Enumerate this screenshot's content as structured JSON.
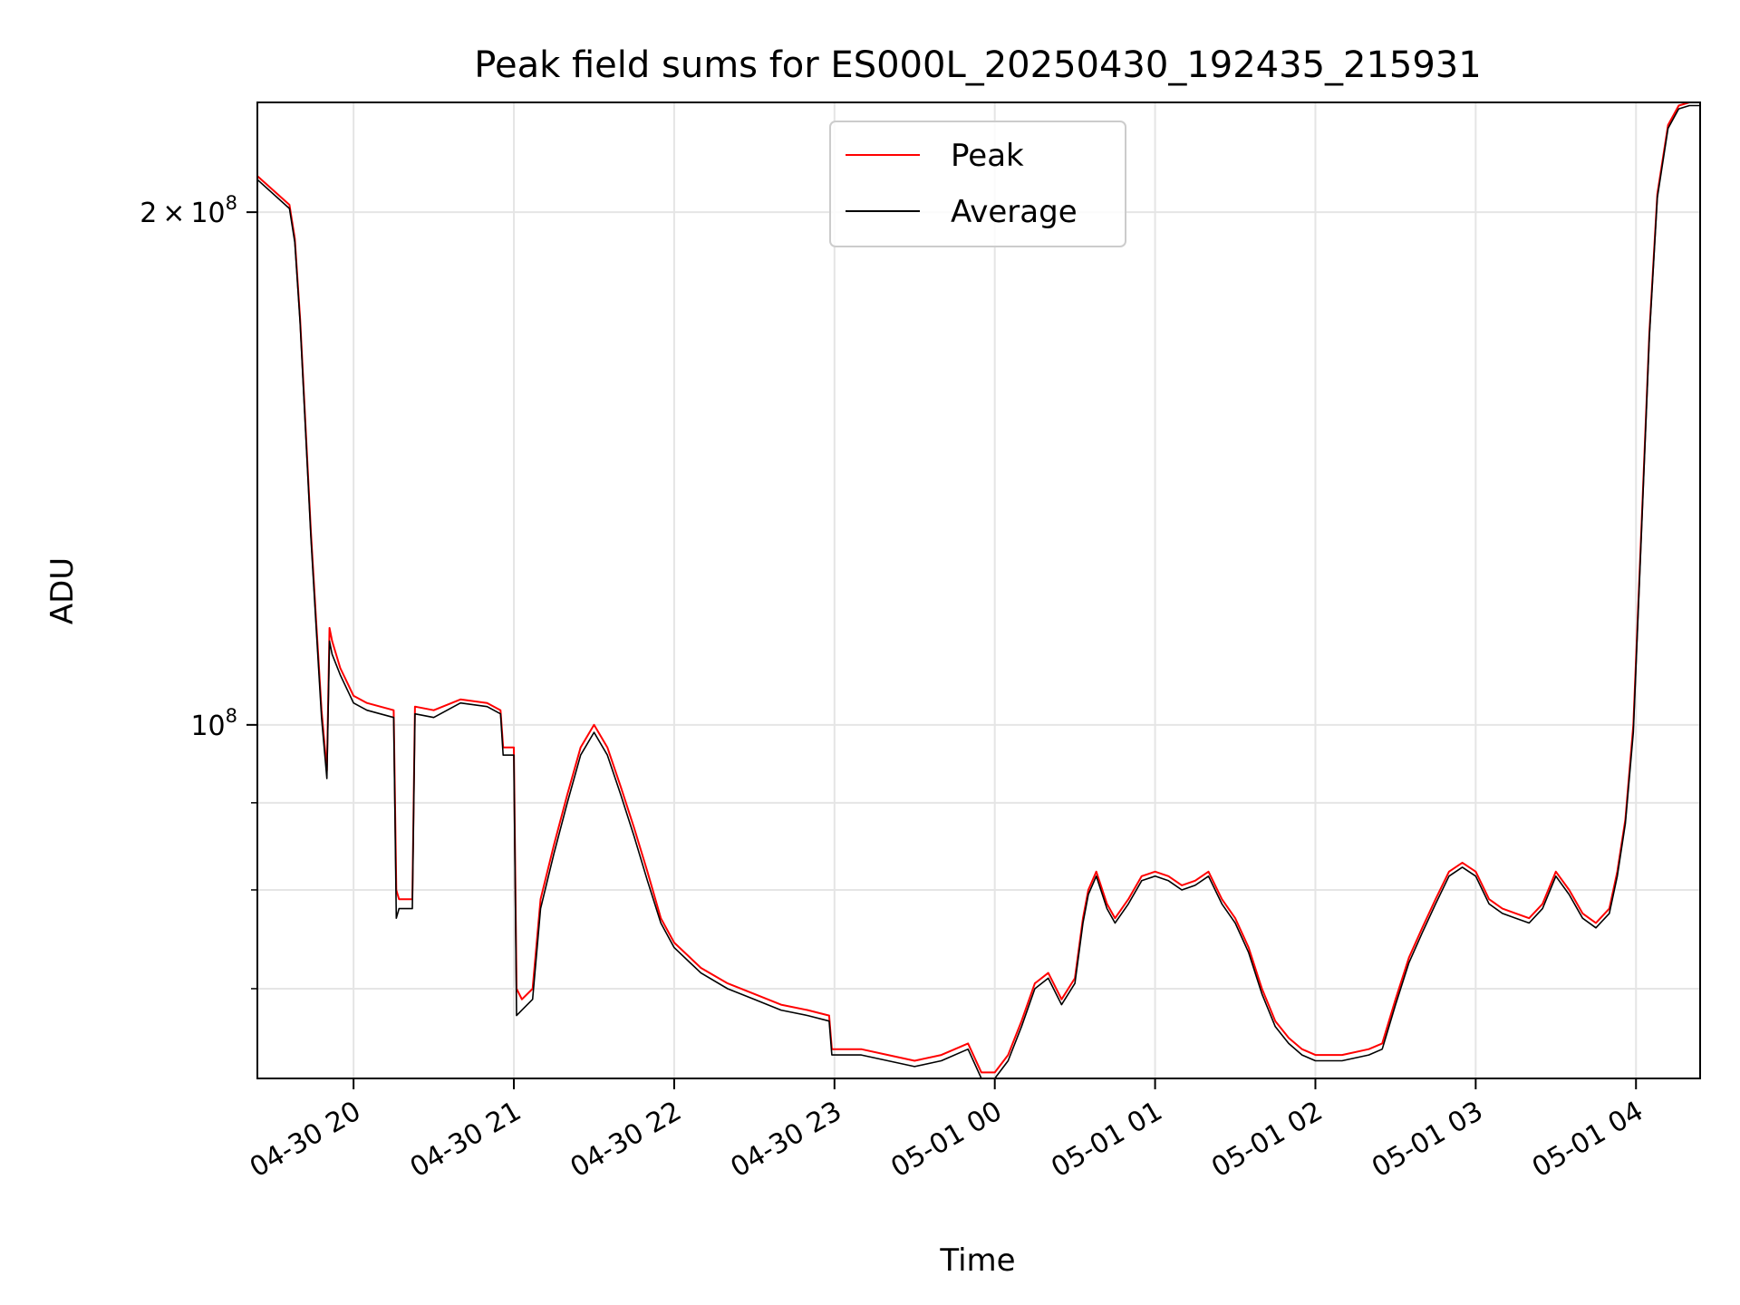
{
  "chart_data": {
    "type": "line",
    "title": "Peak field sums for ES000L_20250430_192435_215931",
    "xlabel": "Time",
    "ylabel": "ADU",
    "y_scale": "log",
    "grid": true,
    "legend_position": "top-center",
    "xlim": [
      "2025-04-30 19:24",
      "2025-05-01 04:24"
    ],
    "ylim": [
      62000000,
      232000000
    ],
    "x_ticks": [
      {
        "value": "2025-04-30 20:00",
        "label": "04-30 20"
      },
      {
        "value": "2025-04-30 21:00",
        "label": "04-30 21"
      },
      {
        "value": "2025-04-30 22:00",
        "label": "04-30 22"
      },
      {
        "value": "2025-04-30 23:00",
        "label": "04-30 23"
      },
      {
        "value": "2025-05-01 00:00",
        "label": "05-01 00"
      },
      {
        "value": "2025-05-01 01:00",
        "label": "05-01 01"
      },
      {
        "value": "2025-05-01 02:00",
        "label": "05-01 02"
      },
      {
        "value": "2025-05-01 03:00",
        "label": "05-01 03"
      },
      {
        "value": "2025-05-01 04:00",
        "label": "05-01 04"
      }
    ],
    "y_major_ticks": [
      {
        "value": 100000000,
        "base": "10",
        "exp": "8",
        "coef": ""
      },
      {
        "value": 200000000,
        "base": "10",
        "exp": "8",
        "coef": "2"
      }
    ],
    "y_minor_ticks": [
      70000000,
      80000000,
      90000000
    ],
    "series": [
      {
        "name": "Peak",
        "color": "#ff0000",
        "x": [
          "2025-04-30 19:24",
          "2025-04-30 19:36",
          "2025-04-30 19:38",
          "2025-04-30 19:40",
          "2025-04-30 19:42",
          "2025-04-30 19:44",
          "2025-04-30 19:46",
          "2025-04-30 19:48",
          "2025-04-30 19:50",
          "2025-04-30 19:51",
          "2025-04-30 19:52",
          "2025-04-30 19:55",
          "2025-04-30 20:00",
          "2025-04-30 20:05",
          "2025-04-30 20:10",
          "2025-04-30 20:15",
          "2025-04-30 20:16",
          "2025-04-30 20:17",
          "2025-04-30 20:18",
          "2025-04-30 20:22",
          "2025-04-30 20:23",
          "2025-04-30 20:30",
          "2025-04-30 20:40",
          "2025-04-30 20:50",
          "2025-04-30 20:55",
          "2025-04-30 20:56",
          "2025-04-30 21:00",
          "2025-04-30 21:01",
          "2025-04-30 21:03",
          "2025-04-30 21:07",
          "2025-04-30 21:10",
          "2025-04-30 21:15",
          "2025-04-30 21:20",
          "2025-04-30 21:25",
          "2025-04-30 21:30",
          "2025-04-30 21:35",
          "2025-04-30 21:40",
          "2025-04-30 21:45",
          "2025-04-30 21:50",
          "2025-04-30 21:55",
          "2025-04-30 22:00",
          "2025-04-30 22:10",
          "2025-04-30 22:20",
          "2025-04-30 22:30",
          "2025-04-30 22:40",
          "2025-04-30 22:50",
          "2025-04-30 22:58",
          "2025-04-30 22:59",
          "2025-04-30 23:10",
          "2025-04-30 23:20",
          "2025-04-30 23:30",
          "2025-04-30 23:40",
          "2025-04-30 23:50",
          "2025-04-30 23:55",
          "2025-05-01 00:00",
          "2025-05-01 00:05",
          "2025-05-01 00:10",
          "2025-05-01 00:15",
          "2025-05-01 00:20",
          "2025-05-01 00:25",
          "2025-05-01 00:30",
          "2025-05-01 00:33",
          "2025-05-01 00:35",
          "2025-05-01 00:38",
          "2025-05-01 00:42",
          "2025-05-01 00:45",
          "2025-05-01 00:50",
          "2025-05-01 00:55",
          "2025-05-01 01:00",
          "2025-05-01 01:05",
          "2025-05-01 01:10",
          "2025-05-01 01:15",
          "2025-05-01 01:20",
          "2025-05-01 01:25",
          "2025-05-01 01:30",
          "2025-05-01 01:35",
          "2025-05-01 01:40",
          "2025-05-01 01:45",
          "2025-05-01 01:50",
          "2025-05-01 01:55",
          "2025-05-01 02:00",
          "2025-05-01 02:10",
          "2025-05-01 02:20",
          "2025-05-01 02:25",
          "2025-05-01 02:30",
          "2025-05-01 02:35",
          "2025-05-01 02:40",
          "2025-05-01 02:45",
          "2025-05-01 02:50",
          "2025-05-01 02:55",
          "2025-05-01 03:00",
          "2025-05-01 03:05",
          "2025-05-01 03:10",
          "2025-05-01 03:15",
          "2025-05-01 03:20",
          "2025-05-01 03:25",
          "2025-05-01 03:30",
          "2025-05-01 03:35",
          "2025-05-01 03:40",
          "2025-05-01 03:45",
          "2025-05-01 03:50",
          "2025-05-01 03:53",
          "2025-05-01 03:56",
          "2025-05-01 03:59",
          "2025-05-01 04:02",
          "2025-05-01 04:05",
          "2025-05-01 04:08",
          "2025-05-01 04:12",
          "2025-05-01 04:16",
          "2025-05-01 04:20",
          "2025-05-01 04:24"
        ],
        "y": [
          210000000,
          202000000,
          193000000,
          173000000,
          150000000,
          130000000,
          115000000,
          102000000,
          94000000,
          114000000,
          112000000,
          108000000,
          104000000,
          103000000,
          102500000,
          102000000,
          80000000,
          79000000,
          79000000,
          79000000,
          102500000,
          102000000,
          103500000,
          103000000,
          102000000,
          97000000,
          97000000,
          70000000,
          69000000,
          70000000,
          79000000,
          85000000,
          91000000,
          97000000,
          100000000,
          97000000,
          92000000,
          87000000,
          82000000,
          77000000,
          74500000,
          72000000,
          70500000,
          69500000,
          68500000,
          68000000,
          67500000,
          64500000,
          64500000,
          64000000,
          63500000,
          64000000,
          65000000,
          62500000,
          62500000,
          64000000,
          67000000,
          70500000,
          71500000,
          69000000,
          71000000,
          77000000,
          80000000,
          82000000,
          78500000,
          77000000,
          79000000,
          81500000,
          82000000,
          81500000,
          80500000,
          81000000,
          82000000,
          79000000,
          77000000,
          74000000,
          70000000,
          67000000,
          65500000,
          64500000,
          64000000,
          64000000,
          64500000,
          65000000,
          69000000,
          73000000,
          76000000,
          79000000,
          82000000,
          83000000,
          82000000,
          79000000,
          78000000,
          77500000,
          77000000,
          78500000,
          82000000,
          80000000,
          77500000,
          76500000,
          78000000,
          82000000,
          88000000,
          100000000,
          130000000,
          170000000,
          205000000,
          225000000,
          231000000,
          232000000,
          232000000
        ]
      },
      {
        "name": "Average",
        "color": "#000000",
        "x": [
          "2025-04-30 19:24",
          "2025-04-30 19:36",
          "2025-04-30 19:38",
          "2025-04-30 19:40",
          "2025-04-30 19:42",
          "2025-04-30 19:44",
          "2025-04-30 19:46",
          "2025-04-30 19:48",
          "2025-04-30 19:50",
          "2025-04-30 19:51",
          "2025-04-30 19:52",
          "2025-04-30 19:55",
          "2025-04-30 20:00",
          "2025-04-30 20:05",
          "2025-04-30 20:10",
          "2025-04-30 20:15",
          "2025-04-30 20:16",
          "2025-04-30 20:17",
          "2025-04-30 20:18",
          "2025-04-30 20:22",
          "2025-04-30 20:23",
          "2025-04-30 20:30",
          "2025-04-30 20:40",
          "2025-04-30 20:50",
          "2025-04-30 20:55",
          "2025-04-30 20:56",
          "2025-04-30 21:00",
          "2025-04-30 21:01",
          "2025-04-30 21:03",
          "2025-04-30 21:07",
          "2025-04-30 21:10",
          "2025-04-30 21:15",
          "2025-04-30 21:20",
          "2025-04-30 21:25",
          "2025-04-30 21:30",
          "2025-04-30 21:35",
          "2025-04-30 21:40",
          "2025-04-30 21:45",
          "2025-04-30 21:50",
          "2025-04-30 21:55",
          "2025-04-30 22:00",
          "2025-04-30 22:10",
          "2025-04-30 22:20",
          "2025-04-30 22:30",
          "2025-04-30 22:40",
          "2025-04-30 22:50",
          "2025-04-30 22:58",
          "2025-04-30 22:59",
          "2025-04-30 23:10",
          "2025-04-30 23:20",
          "2025-04-30 23:30",
          "2025-04-30 23:40",
          "2025-04-30 23:50",
          "2025-04-30 23:55",
          "2025-05-01 00:00",
          "2025-05-01 00:05",
          "2025-05-01 00:10",
          "2025-05-01 00:15",
          "2025-05-01 00:20",
          "2025-05-01 00:25",
          "2025-05-01 00:30",
          "2025-05-01 00:33",
          "2025-05-01 00:35",
          "2025-05-01 00:38",
          "2025-05-01 00:42",
          "2025-05-01 00:45",
          "2025-05-01 00:50",
          "2025-05-01 00:55",
          "2025-05-01 01:00",
          "2025-05-01 01:05",
          "2025-05-01 01:10",
          "2025-05-01 01:15",
          "2025-05-01 01:20",
          "2025-05-01 01:25",
          "2025-05-01 01:30",
          "2025-05-01 01:35",
          "2025-05-01 01:40",
          "2025-05-01 01:45",
          "2025-05-01 01:50",
          "2025-05-01 01:55",
          "2025-05-01 02:00",
          "2025-05-01 02:10",
          "2025-05-01 02:20",
          "2025-05-01 02:25",
          "2025-05-01 02:30",
          "2025-05-01 02:35",
          "2025-05-01 02:40",
          "2025-05-01 02:45",
          "2025-05-01 02:50",
          "2025-05-01 02:55",
          "2025-05-01 03:00",
          "2025-05-01 03:05",
          "2025-05-01 03:10",
          "2025-05-01 03:15",
          "2025-05-01 03:20",
          "2025-05-01 03:25",
          "2025-05-01 03:30",
          "2025-05-01 03:35",
          "2025-05-01 03:40",
          "2025-05-01 03:45",
          "2025-05-01 03:50",
          "2025-05-01 03:53",
          "2025-05-01 03:56",
          "2025-05-01 03:59",
          "2025-05-01 04:02",
          "2025-05-01 04:05",
          "2025-05-01 04:08",
          "2025-05-01 04:12",
          "2025-05-01 04:16",
          "2025-05-01 04:20",
          "2025-05-01 04:24"
        ],
        "y": [
          209000000,
          201000000,
          192000000,
          172000000,
          149000000,
          129000000,
          114000000,
          101000000,
          93000000,
          112000000,
          110000000,
          107000000,
          103000000,
          102000000,
          101500000,
          101000000,
          77000000,
          78000000,
          78000000,
          78000000,
          101500000,
          101000000,
          103000000,
          102500000,
          101500000,
          96000000,
          96000000,
          67500000,
          68000000,
          69000000,
          78000000,
          84000000,
          90000000,
          96000000,
          99000000,
          96000000,
          91000000,
          86000000,
          81000000,
          76500000,
          74000000,
          71500000,
          70000000,
          69000000,
          68000000,
          67500000,
          67000000,
          64000000,
          64000000,
          63500000,
          63000000,
          63500000,
          64500000,
          62000000,
          62000000,
          63500000,
          66500000,
          70000000,
          71000000,
          68500000,
          70500000,
          76500000,
          79500000,
          81500000,
          78000000,
          76500000,
          78500000,
          81000000,
          81500000,
          81000000,
          80000000,
          80500000,
          81500000,
          78500000,
          76500000,
          73500000,
          69500000,
          66500000,
          65000000,
          64000000,
          63500000,
          63500000,
          64000000,
          64500000,
          68500000,
          72500000,
          75500000,
          78500000,
          81500000,
          82500000,
          81500000,
          78500000,
          77500000,
          77000000,
          76500000,
          78000000,
          81500000,
          79500000,
          77000000,
          76000000,
          77500000,
          81500000,
          87500000,
          99000000,
          129000000,
          169000000,
          204000000,
          224000000,
          230000000,
          231000000,
          231000000
        ]
      }
    ]
  }
}
